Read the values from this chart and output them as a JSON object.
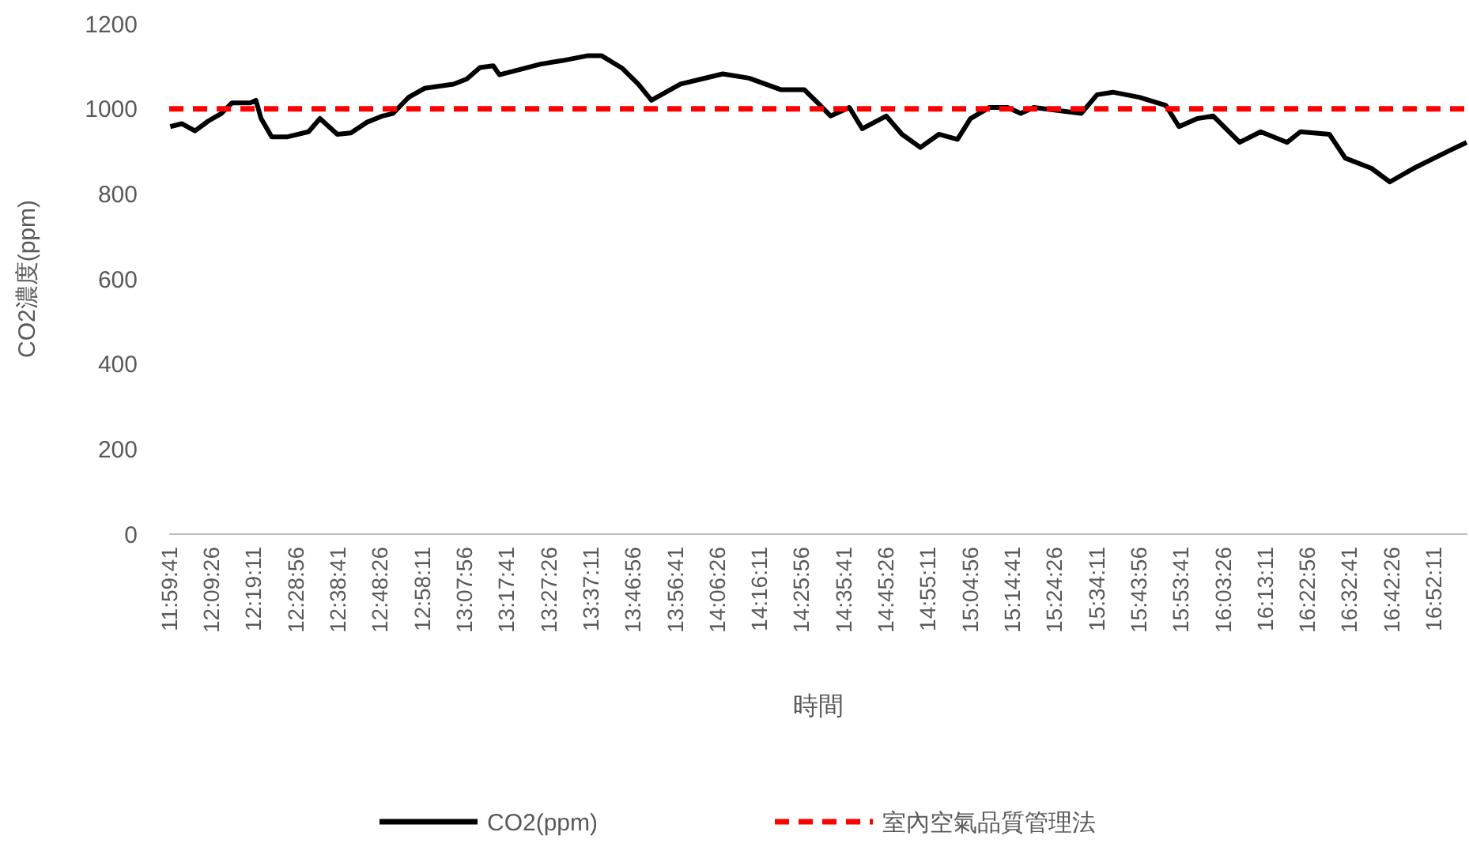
{
  "chart_data": {
    "type": "line",
    "xlabel": "時間",
    "ylabel": "CO2濃度(ppm)",
    "xlim": [
      11.99472,
      17.0
    ],
    "xticks": [
      {
        "value": 11.99472,
        "label": "11:59:41"
      },
      {
        "value": 12.15722,
        "label": "12:09:26"
      },
      {
        "value": 12.31972,
        "label": "12:19:11"
      },
      {
        "value": 12.48222,
        "label": "12:28:56"
      },
      {
        "value": 12.64472,
        "label": "12:38:41"
      },
      {
        "value": 12.80722,
        "label": "12:48:26"
      },
      {
        "value": 12.96972,
        "label": "12:58:11"
      },
      {
        "value": 13.13222,
        "label": "13:07:56"
      },
      {
        "value": 13.29472,
        "label": "13:17:41"
      },
      {
        "value": 13.45722,
        "label": "13:27:26"
      },
      {
        "value": 13.61972,
        "label": "13:37:11"
      },
      {
        "value": 13.78222,
        "label": "13:46:56"
      },
      {
        "value": 13.94472,
        "label": "13:56:41"
      },
      {
        "value": 14.10722,
        "label": "14:06:26"
      },
      {
        "value": 14.26972,
        "label": "14:16:11"
      },
      {
        "value": 14.43222,
        "label": "14:25:56"
      },
      {
        "value": 14.59472,
        "label": "14:35:41"
      },
      {
        "value": 14.75722,
        "label": "14:45:26"
      },
      {
        "value": 14.91972,
        "label": "14:55:11"
      },
      {
        "value": 15.08222,
        "label": "15:04:56"
      },
      {
        "value": 15.24472,
        "label": "15:14:41"
      },
      {
        "value": 15.40722,
        "label": "15:24:26"
      },
      {
        "value": 15.56972,
        "label": "15:34:11"
      },
      {
        "value": 15.73222,
        "label": "15:43:56"
      },
      {
        "value": 15.89472,
        "label": "15:53:41"
      },
      {
        "value": 16.05722,
        "label": "16:03:26"
      },
      {
        "value": 16.21972,
        "label": "16:13:11"
      },
      {
        "value": 16.38222,
        "label": "16:22:56"
      },
      {
        "value": 16.54472,
        "label": "16:32:41"
      },
      {
        "value": 16.70722,
        "label": "16:42:26"
      },
      {
        "value": 16.86972,
        "label": "16:52:11"
      }
    ],
    "ylim": [
      0,
      1200
    ],
    "yticks": [
      0,
      200,
      400,
      600,
      800,
      1000,
      1200
    ],
    "grid": false,
    "legend": "bottom",
    "marker": "none",
    "series": [
      {
        "name": "CO2(ppm)",
        "color": "#000000",
        "line_style": "solid",
        "x": [
          11.999,
          12.044,
          12.094,
          12.145,
          12.196,
          12.237,
          12.308,
          12.329,
          12.349,
          12.39,
          12.451,
          12.532,
          12.576,
          12.643,
          12.695,
          12.756,
          12.817,
          12.857,
          12.918,
          12.979,
          13.091,
          13.142,
          13.193,
          13.244,
          13.268,
          13.345,
          13.427,
          13.508,
          13.61,
          13.661,
          13.742,
          13.803,
          13.854,
          13.966,
          14.047,
          14.129,
          14.23,
          14.352,
          14.443,
          14.495,
          14.545,
          14.617,
          14.667,
          14.759,
          14.82,
          14.891,
          14.962,
          15.034,
          15.084,
          15.156,
          15.227,
          15.278,
          15.328,
          15.511,
          15.572,
          15.633,
          15.735,
          15.837,
          15.888,
          15.959,
          16.02,
          16.122,
          16.203,
          16.305,
          16.356,
          16.468,
          16.529,
          16.63,
          16.701,
          16.793,
          16.935,
          16.997
        ],
        "values": [
          958,
          965,
          948,
          971,
          989,
          1014,
          1014,
          1020,
          977,
          934,
          934,
          946,
          977,
          940,
          943,
          968,
          983,
          989,
          1027,
          1048,
          1058,
          1070,
          1097,
          1101,
          1080,
          1092,
          1105,
          1113,
          1125,
          1125,
          1095,
          1058,
          1020,
          1058,
          1070,
          1082,
          1072,
          1045,
          1045,
          1014,
          983,
          1003,
          953,
          983,
          940,
          909,
          940,
          928,
          977,
          1003,
          1003,
          989,
          1003,
          989,
          1033,
          1039,
          1027,
          1008,
          958,
          977,
          983,
          921,
          946,
          921,
          946,
          940,
          884,
          860,
          828,
          860,
          903,
          921
        ]
      },
      {
        "name": "室內空氣品質管理法",
        "color": "#ff0000",
        "line_style": "dashed",
        "x": [
          11.99472,
          17.0
        ],
        "values": [
          1000,
          1000
        ]
      }
    ]
  }
}
